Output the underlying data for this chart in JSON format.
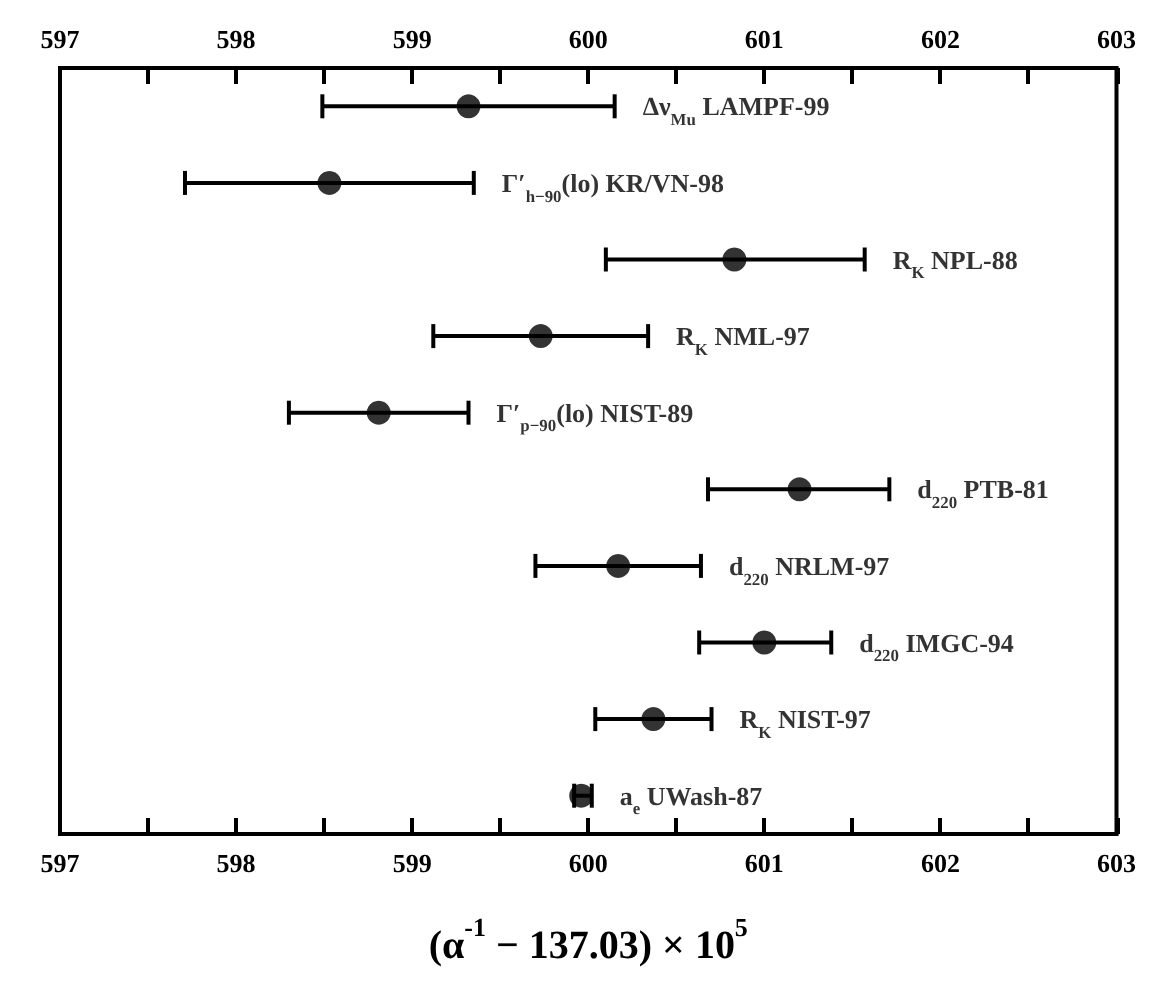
{
  "chart_data": {
    "type": "scatter",
    "orientation": "horizontal",
    "xlabel": "(α$^{-1}$ − 137.03) × 10$^{5}$",
    "categories": [
      "Δν$_{Mu}$ LAMPF-99",
      "Γ′$_{h−90}$(lo) KR/VN-98",
      "R$_{K}$ NPL-88",
      "R$_{K}$ NML-97",
      "Γ′$_{p−90}$(lo) NIST-89",
      "d$_{220}$ PTB-81",
      "d$_{220}$ NRLM-97",
      "d$_{220}$ IMGC-94",
      "R$_{K}$ NIST-97",
      "a$_{e}$ UWash-87"
    ],
    "values": [
      599.32,
      598.53,
      600.83,
      599.73,
      598.81,
      601.2,
      600.17,
      601.0,
      600.37,
      599.96
    ],
    "errors": [
      [
        598.49,
        600.15
      ],
      [
        597.71,
        599.35
      ],
      [
        600.1,
        601.57
      ],
      [
        599.12,
        600.34
      ],
      [
        598.3,
        599.32
      ],
      [
        600.68,
        601.71
      ],
      [
        599.7,
        600.64
      ],
      [
        600.63,
        601.38
      ],
      [
        600.04,
        600.7
      ],
      [
        599.92,
        600.02
      ]
    ],
    "color": "#000000",
    "marker": "circle",
    "grid": false,
    "tick_labels": "x",
    "xlim": [
      597,
      603
    ],
    "xticks": [
      597,
      {
        "value": 597.5,
        "label": null
      },
      598,
      {
        "value": 598.5,
        "label": null
      },
      599,
      {
        "value": 599.5,
        "label": null
      },
      600,
      {
        "value": 600.5,
        "label": null
      },
      601,
      {
        "value": 601.5,
        "label": null
      },
      602,
      {
        "value": 602.5,
        "label": null
      },
      603
    ],
    "x2lim": [
      597,
      603
    ],
    "x2ticks": [
      597,
      {
        "value": 597.5,
        "label": null
      },
      598,
      {
        "value": 598.5,
        "label": null
      },
      599,
      {
        "value": 599.5,
        "label": null
      },
      600,
      {
        "value": 600.5,
        "label": null
      },
      601,
      {
        "value": 601.5,
        "label": null
      },
      602,
      {
        "value": 602.5,
        "label": null
      },
      603
    ]
  }
}
